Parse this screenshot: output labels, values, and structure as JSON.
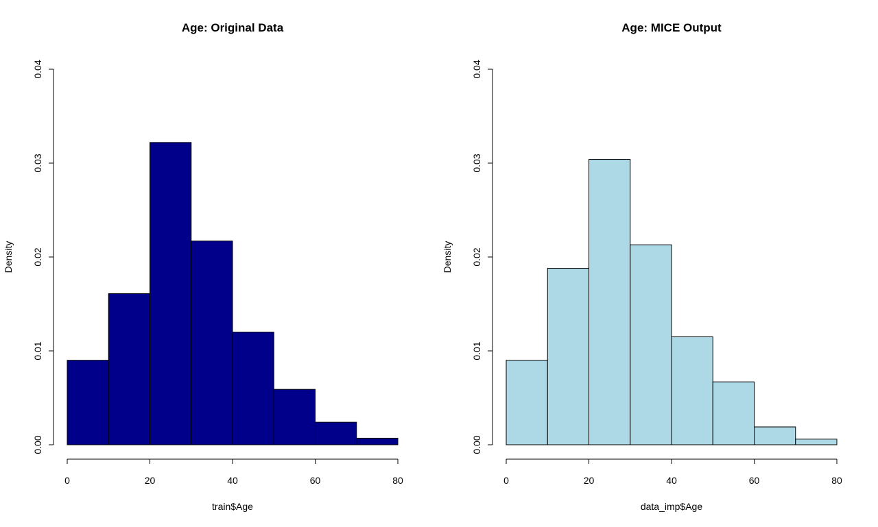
{
  "chart_data": [
    {
      "type": "bar",
      "subtype": "histogram",
      "title": "Age: Original Data",
      "xlabel": "train$Age",
      "ylabel": "Density",
      "bin_edges": [
        0,
        10,
        20,
        30,
        40,
        50,
        60,
        70,
        80
      ],
      "values": [
        0.009,
        0.0161,
        0.0322,
        0.0217,
        0.012,
        0.0059,
        0.0024,
        0.0007
      ],
      "xlim": [
        0,
        80
      ],
      "ylim": [
        0,
        0.04
      ],
      "x_ticks": [
        "0",
        "20",
        "40",
        "60",
        "80"
      ],
      "y_ticks": [
        "0.00",
        "0.01",
        "0.02",
        "0.03",
        "0.04"
      ],
      "fill_color": "#00008B",
      "grid": false
    },
    {
      "type": "bar",
      "subtype": "histogram",
      "title": "Age: MICE Output",
      "xlabel": "data_imp$Age",
      "ylabel": "Density",
      "bin_edges": [
        0,
        10,
        20,
        30,
        40,
        50,
        60,
        70,
        80
      ],
      "values": [
        0.009,
        0.0188,
        0.0304,
        0.0213,
        0.0115,
        0.0067,
        0.0019,
        0.0006
      ],
      "xlim": [
        0,
        80
      ],
      "ylim": [
        0,
        0.04
      ],
      "x_ticks": [
        "0",
        "20",
        "40",
        "60",
        "80"
      ],
      "y_ticks": [
        "0.00",
        "0.01",
        "0.02",
        "0.03",
        "0.04"
      ],
      "fill_color": "#ADD8E6",
      "grid": false
    }
  ]
}
